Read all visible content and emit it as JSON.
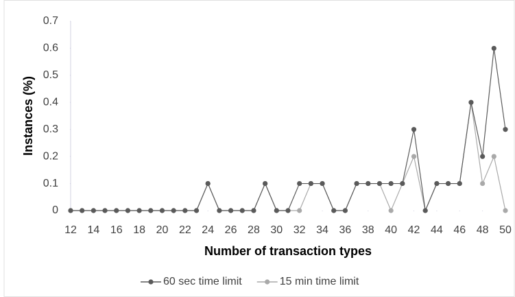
{
  "chart_data": {
    "type": "line",
    "x_label": "Number of transaction types",
    "y_label": "Instances (%)",
    "x": [
      12,
      13,
      14,
      15,
      16,
      17,
      18,
      19,
      20,
      21,
      22,
      23,
      24,
      25,
      26,
      27,
      28,
      29,
      30,
      31,
      32,
      33,
      34,
      35,
      36,
      37,
      38,
      39,
      40,
      41,
      42,
      43,
      44,
      45,
      46,
      47,
      48,
      49,
      50
    ],
    "series": [
      {
        "name": "60 sec time limit",
        "color": "#5a5a5a",
        "values": [
          0,
          0,
          0,
          0,
          0,
          0,
          0,
          0,
          0,
          0,
          0,
          0,
          0.1,
          0,
          0,
          0,
          0,
          0.1,
          0,
          0,
          0.1,
          0.1,
          0.1,
          0,
          0,
          0.1,
          0.1,
          0.1,
          0.1,
          0.1,
          0.3,
          0,
          0.1,
          0.1,
          0.1,
          0.4,
          0.2,
          0.6,
          0.3
        ]
      },
      {
        "name": "15 min time limit",
        "color": "#a9a9a9",
        "values": [
          0,
          0,
          0,
          0,
          0,
          0,
          0,
          0,
          0,
          0,
          0,
          0,
          0.1,
          0,
          0,
          0,
          0,
          0.1,
          0,
          0,
          0,
          0.1,
          0.1,
          0,
          0,
          0.1,
          0.1,
          0.1,
          0,
          0.1,
          0.2,
          0,
          0.1,
          0.1,
          0.1,
          0.4,
          0.1,
          0.2,
          0
        ]
      }
    ],
    "xlim": [
      12,
      50
    ],
    "xticks": [
      12,
      14,
      16,
      18,
      20,
      22,
      24,
      26,
      28,
      30,
      32,
      34,
      36,
      38,
      40,
      42,
      44,
      46,
      48,
      50
    ],
    "ylim": [
      0,
      0.7
    ],
    "yticks": [
      0,
      0.1,
      0.2,
      0.3,
      0.4,
      0.5,
      0.6,
      0.7
    ],
    "legend": "bottom",
    "grid": false
  }
}
